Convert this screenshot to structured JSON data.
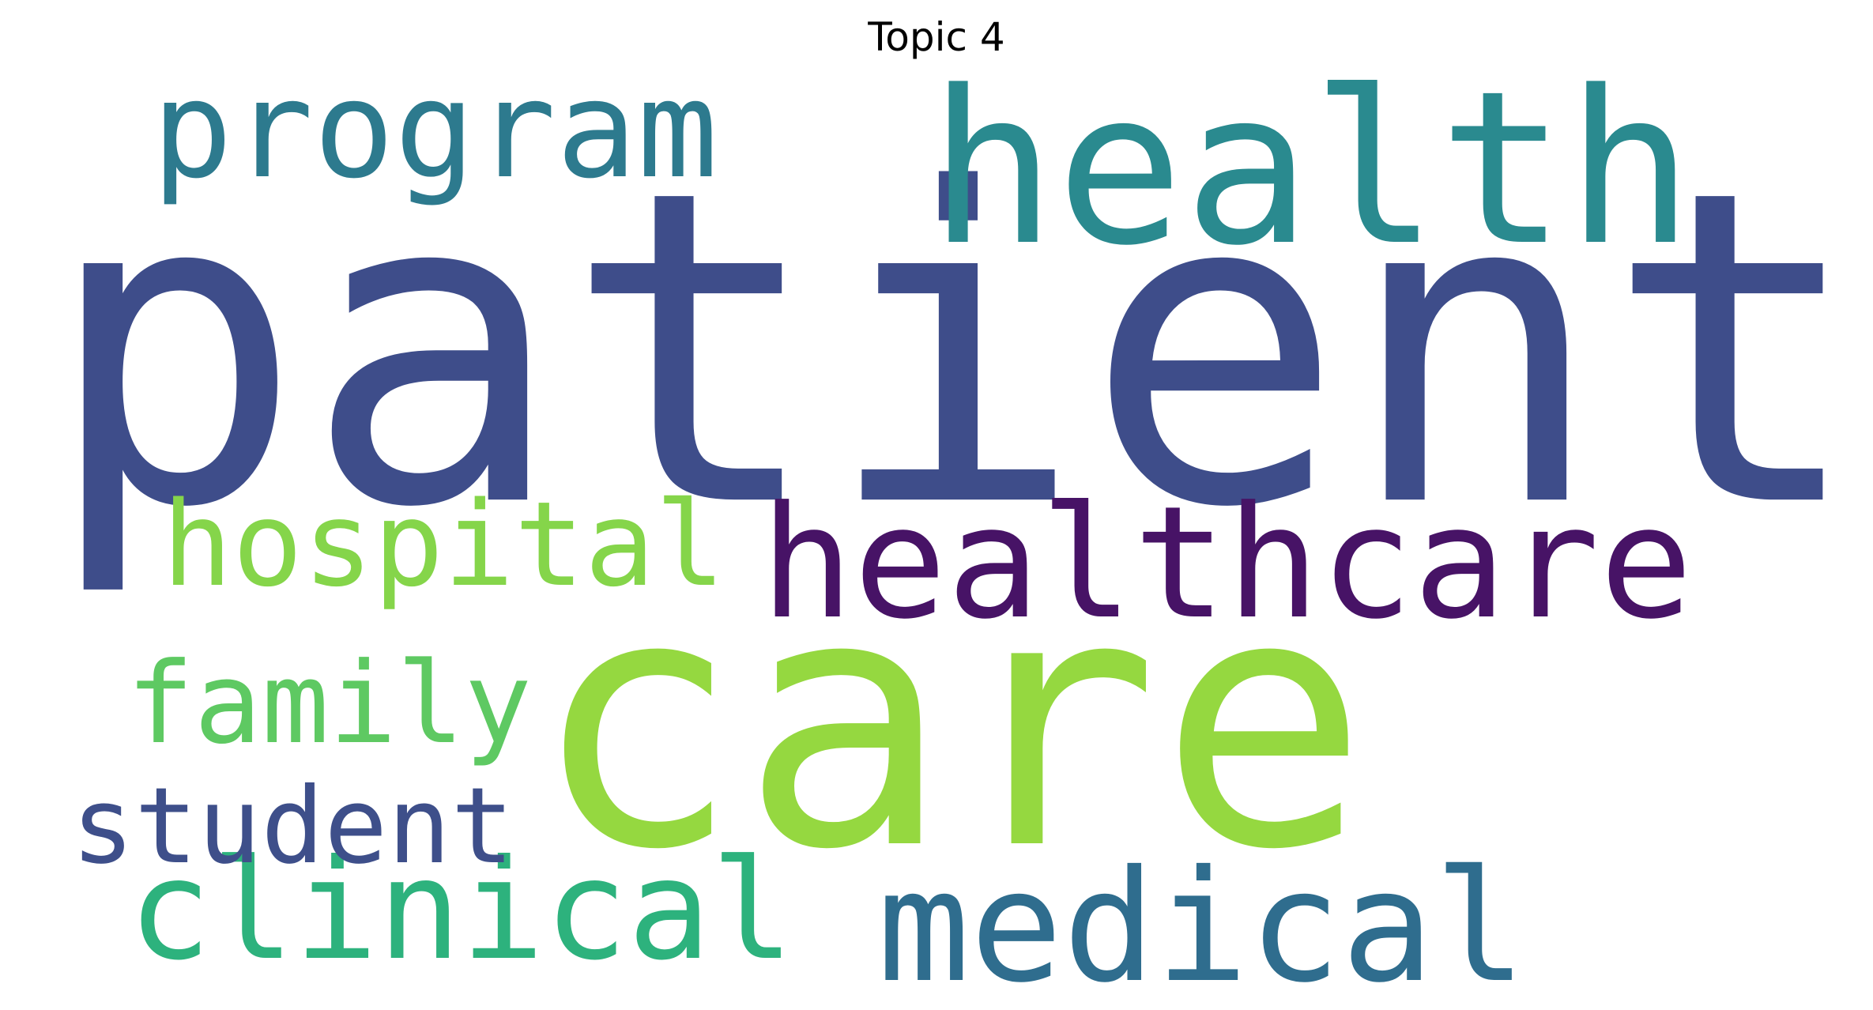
{
  "title": "Topic 4",
  "words": [
    {
      "id": "patient",
      "text": "patient",
      "color": "#3e4d8a"
    },
    {
      "id": "care",
      "text": "care",
      "color": "#95d840"
    },
    {
      "id": "health",
      "text": "health",
      "color": "#2a8a8f"
    },
    {
      "id": "healthcare",
      "text": "healthcare",
      "color": "#471366"
    },
    {
      "id": "program",
      "text": "program",
      "color": "#2d7a8e"
    },
    {
      "id": "medical",
      "text": "medical",
      "color": "#2f6d8e"
    },
    {
      "id": "hospital",
      "text": "hospital",
      "color": "#85d54a"
    },
    {
      "id": "clinical",
      "text": "clinical",
      "color": "#2db27d"
    },
    {
      "id": "family",
      "text": "family",
      "color": "#5ec962"
    },
    {
      "id": "student",
      "text": "student",
      "color": "#3e4f8a"
    }
  ]
}
